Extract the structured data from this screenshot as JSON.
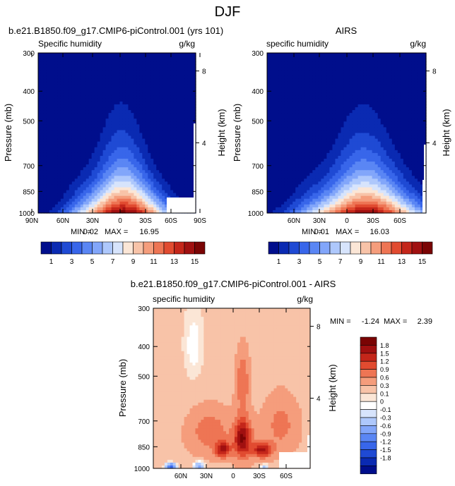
{
  "title": "DJF",
  "chart_data": [
    {
      "type": "heatmap",
      "title": "b.e21.B1850.f09_g17.CMIP6-piControl.001 (yrs 101)",
      "left_label": "Specific humidity",
      "right_label": "g/kg",
      "ylabel": "Pressure (mb)",
      "y2label": "Height (km)",
      "ylim": [
        1000,
        300
      ],
      "y_ticks": [
        "300",
        "400",
        "500",
        "700",
        "850",
        "1000"
      ],
      "y2_ticks": [
        "8",
        "4"
      ],
      "x_ticks": [
        "90N",
        "60N",
        "30N",
        "0",
        "30S",
        "60S",
        "90S"
      ],
      "stats": {
        "min_label": "MIN =",
        "min": "0.02",
        "max_label": "MAX =",
        "max": "16.95"
      },
      "colorbar_labels": [
        "1",
        "3",
        "5",
        "7",
        "9",
        "11",
        "13",
        "15"
      ],
      "field_max": 16.95
    },
    {
      "type": "heatmap",
      "title": "AIRS",
      "left_label": "specific humidity",
      "right_label": "g/kg",
      "ylabel": "Pressure (mb)",
      "y2label": "Height (km)",
      "ylim": [
        1000,
        300
      ],
      "y_ticks": [
        "300",
        "400",
        "500",
        "700",
        "850",
        "1000"
      ],
      "y2_ticks": [
        "8",
        "4"
      ],
      "x_ticks": [
        "60N",
        "30N",
        "0",
        "30S",
        "60S"
      ],
      "stats": {
        "min_label": "MIN =",
        "min": "0.01",
        "max_label": "MAX =",
        "max": "16.03"
      },
      "colorbar_labels": [
        "1",
        "3",
        "5",
        "7",
        "9",
        "11",
        "13",
        "15"
      ],
      "field_max": 16.03
    },
    {
      "type": "heatmap",
      "title": "b.e21.B1850.f09_g17.CMIP6-piControl.001 - AIRS",
      "left_label": "specific humidity",
      "right_label": "g/kg",
      "ylabel": "Pressure (mb)",
      "y2label": "Height (km)",
      "ylim": [
        1000,
        300
      ],
      "y_ticks": [
        "300",
        "400",
        "500",
        "700",
        "850",
        "1000"
      ],
      "y2_ticks": [
        "8",
        "4"
      ],
      "x_ticks": [
        "60N",
        "30N",
        "0",
        "30S",
        "60S"
      ],
      "stats": {
        "min_label": "MIN =",
        "min": "-1.24",
        "max_label": "MAX =",
        "max": "2.39"
      },
      "colorbar_labels": [
        "1.8",
        "1.5",
        "1.2",
        "0.9",
        "0.6",
        "0.3",
        "0.1",
        "0",
        "-0.1",
        "-0.3",
        "-0.6",
        "-0.9",
        "-1.2",
        "-1.5",
        "-1.8"
      ]
    }
  ],
  "colors": {
    "sequential": [
      "#000e8c",
      "#0a2ab2",
      "#1f4ad4",
      "#3866ea",
      "#5a86f4",
      "#82a6fa",
      "#aec8fc",
      "#d7e4fc",
      "#fbe6d6",
      "#f8c3a8",
      "#f59d7c",
      "#ee7554",
      "#e14b30",
      "#c4261a",
      "#a01010",
      "#7a0404"
    ],
    "diverging": [
      "#7a0404",
      "#a01010",
      "#c4261a",
      "#e14b30",
      "#ee7554",
      "#f59d7c",
      "#f8c3a8",
      "#fbe6d6",
      "#ffffff",
      "#d7e4fc",
      "#aec8fc",
      "#82a6fa",
      "#5a86f4",
      "#3866ea",
      "#1f4ad4",
      "#0a2ab2",
      "#000e8c"
    ]
  }
}
